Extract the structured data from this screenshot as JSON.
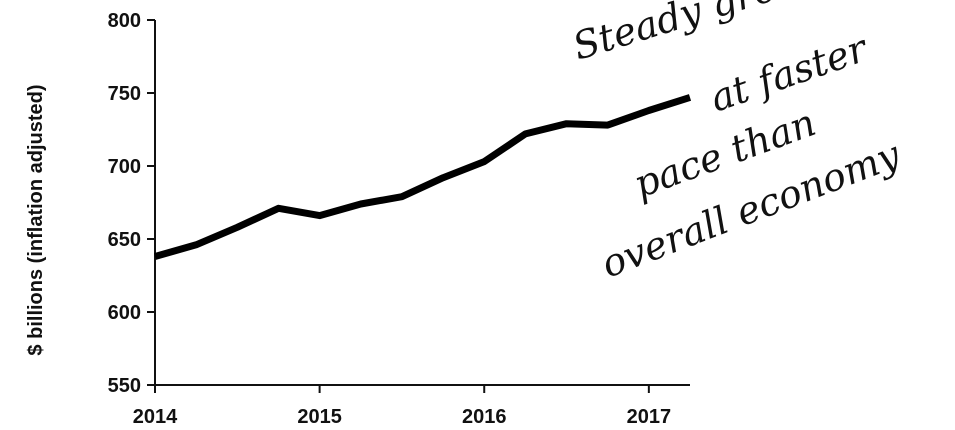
{
  "chart_data": {
    "type": "line",
    "title": "",
    "xlabel": "",
    "ylabel": "$ billions (inflation adjusted)",
    "xlim": [
      2014,
      2017.25
    ],
    "ylim": [
      550,
      800
    ],
    "x_ticks": [
      "2014",
      "2015",
      "2016",
      "2017"
    ],
    "y_ticks": [
      "550",
      "600",
      "650",
      "700",
      "750",
      "800"
    ],
    "grid": false,
    "series": [
      {
        "x": [
          2014.0,
          2014.25,
          2014.5,
          2014.75,
          2015.0,
          2015.25,
          2015.5,
          2015.75,
          2016.0,
          2016.25,
          2016.5,
          2016.75,
          2017.0,
          2017.25
        ],
        "values": [
          638,
          646,
          658,
          671,
          666,
          674,
          679,
          692,
          703,
          722,
          729,
          728,
          738,
          747
        ]
      }
    ],
    "annotation": {
      "lines": [
        "Steady growth",
        "at faster",
        "pace than",
        "overall economy"
      ]
    }
  }
}
